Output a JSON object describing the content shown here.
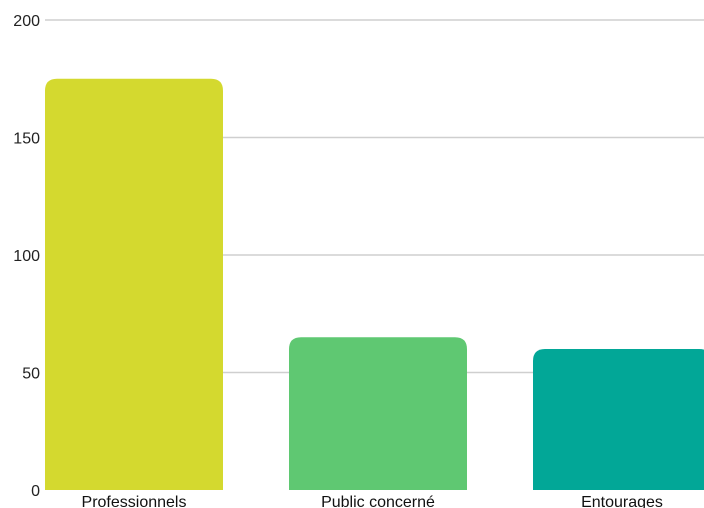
{
  "chart_data": {
    "type": "bar",
    "categories": [
      "Professionnels",
      "Public concerné",
      "Entourages"
    ],
    "values": [
      175,
      65,
      60
    ],
    "colors": [
      "#d4d92f",
      "#5fc872",
      "#02a797"
    ],
    "ylim": [
      0,
      200
    ],
    "yticks": [
      0,
      50,
      100,
      150,
      200
    ],
    "grid": true,
    "title": "",
    "xlabel": "",
    "ylabel": ""
  }
}
